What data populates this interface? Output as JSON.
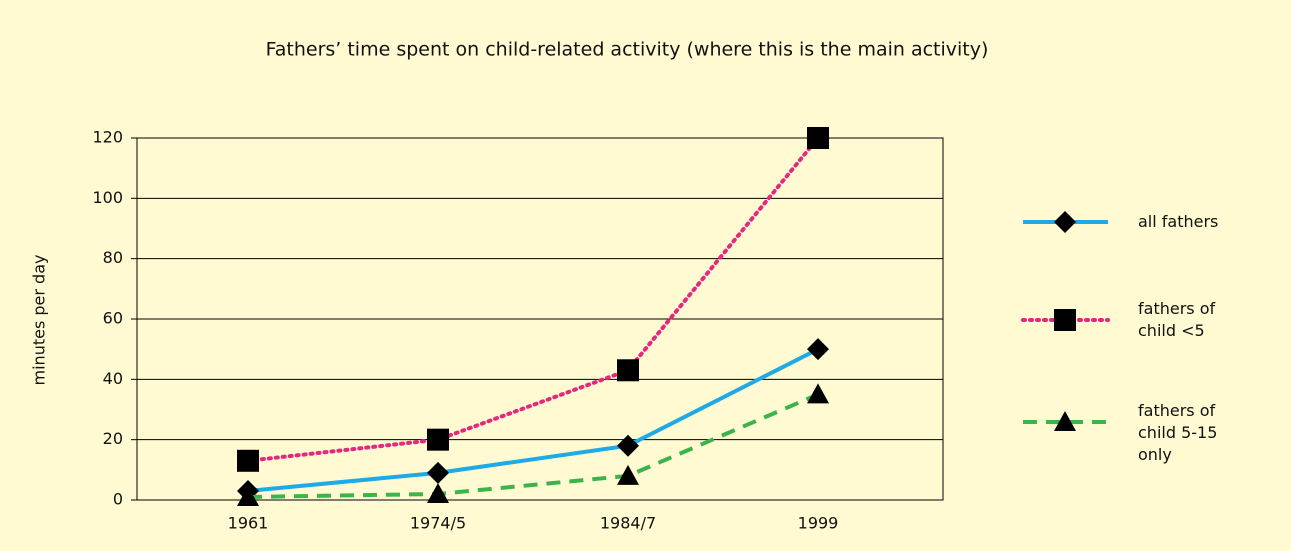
{
  "chart_data": {
    "type": "line",
    "title": "Fathers’ time spent on child-related activity (where this is the main activity)",
    "y_label": "minutes per day",
    "categories": [
      "1961",
      "1974/5",
      "1984/7",
      "1999"
    ],
    "ylim": [
      0,
      120
    ],
    "yticks": [
      0,
      20,
      40,
      60,
      80,
      100,
      120
    ],
    "grid": true,
    "series": [
      {
        "name": "all fathers",
        "color": "#1eaae6",
        "marker": "diamond",
        "dash": "solid",
        "values": [
          3,
          9,
          18,
          50
        ]
      },
      {
        "name": "fathers of child <5",
        "color": "#e6287d",
        "marker": "square",
        "dash": "dotted",
        "values": [
          13,
          20,
          43,
          120
        ]
      },
      {
        "name": "fathers of child 5-15 only",
        "color": "#3cb44b",
        "marker": "triangle",
        "dash": "dashed",
        "values": [
          1,
          2,
          8,
          35
        ]
      }
    ]
  }
}
